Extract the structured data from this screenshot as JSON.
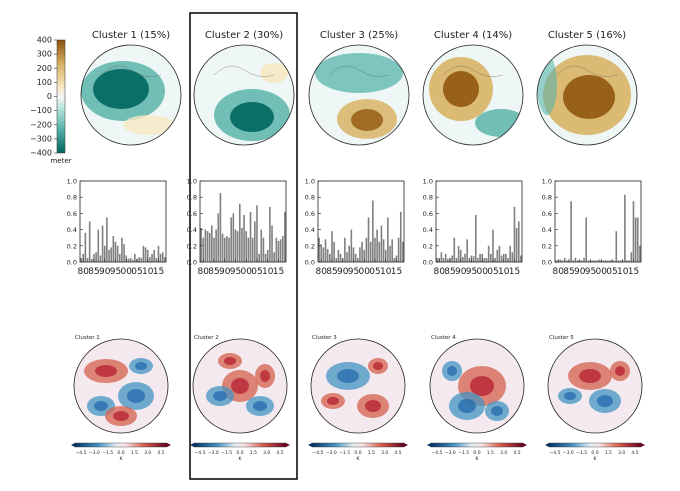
{
  "colors": {
    "teal_dark": "#01665e",
    "teal_mid": "#5ab4ac",
    "teal_light": "#c7eae5",
    "brown_dark": "#8c510a",
    "brown_mid": "#d8b365",
    "brown_light": "#f6e8c3",
    "bar_fill": "#808080",
    "red": "#d6604d",
    "blue": "#4393c3"
  },
  "colorbar": {
    "ticks": [
      "400",
      "300",
      "200",
      "100",
      "0",
      "−100",
      "−200",
      "−300",
      "−400"
    ],
    "unit": "meter"
  },
  "temperature_colorbar": {
    "ticks": [
      "−4.5",
      "−3.0",
      "−1.5",
      "0.0",
      "1.5",
      "3.0",
      "4.5"
    ],
    "unit": "K"
  },
  "chart_data": [
    {
      "type": "heatmap",
      "description_of_panels": "Cluster height-anomaly maps (top row)",
      "clusters": [
        {
          "title": "Cluster 1  (15%)",
          "pattern": "negative-center"
        },
        {
          "title": "Cluster 2  (30%)",
          "pattern": "negative-south"
        },
        {
          "title": "Cluster 3  (25%)",
          "pattern": "positive-south"
        },
        {
          "title": "Cluster 4  (14%)",
          "pattern": "positive-west"
        },
        {
          "title": "Cluster 5  (16%)",
          "pattern": "positive-center"
        }
      ]
    },
    {
      "type": "bar",
      "x_tick_labels": [
        "80",
        "85",
        "90",
        "95",
        "00",
        "05",
        "10",
        "15"
      ],
      "x": [
        1979,
        1980,
        1981,
        1982,
        1983,
        1984,
        1985,
        1986,
        1987,
        1988,
        1989,
        1990,
        1991,
        1992,
        1993,
        1994,
        1995,
        1996,
        1997,
        1998,
        1999,
        2000,
        2001,
        2002,
        2003,
        2004,
        2005,
        2006,
        2007,
        2008,
        2009,
        2010,
        2011,
        2012,
        2013,
        2014,
        2015,
        2016,
        2017,
        2018
      ],
      "ylim": [
        0,
        1.0
      ],
      "y_ticks": [
        "0.0",
        "0.2",
        "0.4",
        "0.6",
        "0.8",
        "1.0"
      ],
      "series": [
        {
          "values": [
            0.05,
            0.1,
            0.36,
            0.05,
            0.5,
            0.04,
            0.1,
            0.12,
            0.4,
            0.08,
            0.45,
            0.2,
            0.55,
            0.15,
            0.18,
            0.32,
            0.25,
            0.2,
            0.1,
            0.3,
            0.22,
            0.08,
            0.04,
            0.05,
            0.03,
            0.1,
            0.04,
            0.06,
            0.05,
            0.2,
            0.18,
            0.15,
            0.06,
            0.1,
            0.15,
            0.05,
            0.2,
            0.1,
            0.12,
            0.06
          ]
        },
        {
          "values": [
            0.42,
            0.3,
            0.4,
            0.38,
            0.36,
            0.45,
            0.3,
            0.4,
            0.6,
            0.85,
            0.35,
            0.3,
            0.32,
            0.3,
            0.55,
            0.6,
            0.4,
            0.38,
            0.72,
            0.42,
            0.58,
            0.38,
            0.3,
            0.62,
            0.3,
            0.5,
            0.7,
            0.1,
            0.4,
            0.3,
            0.1,
            0.15,
            0.68,
            0.45,
            0.12,
            0.3,
            0.26,
            0.28,
            0.32,
            0.62
          ]
        },
        {
          "values": [
            0.3,
            0.22,
            0.18,
            0.28,
            0.16,
            0.1,
            0.38,
            0.25,
            0.05,
            0.15,
            0.1,
            0.05,
            0.3,
            0.12,
            0.2,
            0.4,
            0.18,
            0.1,
            0.05,
            0.18,
            0.25,
            0.15,
            0.3,
            0.55,
            0.25,
            0.76,
            0.3,
            0.4,
            0.25,
            0.45,
            0.28,
            0.15,
            0.55,
            0.2,
            0.28,
            0.05,
            0.08,
            0.3,
            0.62,
            0.25
          ]
        },
        {
          "values": [
            0.05,
            0.05,
            0.12,
            0.05,
            0.1,
            0.04,
            0.05,
            0.08,
            0.3,
            0.05,
            0.2,
            0.15,
            0.06,
            0.1,
            0.28,
            0.05,
            0.08,
            0.07,
            0.58,
            0.05,
            0.1,
            0.1,
            0.05,
            0.05,
            0.2,
            0.1,
            0.4,
            0.05,
            0.15,
            0.2,
            0.08,
            0.1,
            0.1,
            0.05,
            0.2,
            0.12,
            0.68,
            0.42,
            0.5,
            0.08
          ]
        },
        {
          "values": [
            0.02,
            0.02,
            0.03,
            0.02,
            0.05,
            0.02,
            0.02,
            0.75,
            0.02,
            0.05,
            0.02,
            0.02,
            0.02,
            0.05,
            0.55,
            0.02,
            0.02,
            0.02,
            0.02,
            0.02,
            0.03,
            0.02,
            0.02,
            0.02,
            0.02,
            0.02,
            0.02,
            0.02,
            0.38,
            0.02,
            0.02,
            0.02,
            0.83,
            0.02,
            0.02,
            0.12,
            0.75,
            0.55,
            0.55,
            0.2
          ]
        }
      ]
    },
    {
      "type": "heatmap",
      "description_of_panels": "Temperature anomaly maps (bottom row)",
      "clusters": [
        {
          "title": "Cluster 1"
        },
        {
          "title": "Cluster 2"
        },
        {
          "title": "Cluster 3"
        },
        {
          "title": "Cluster 4"
        },
        {
          "title": "Cluster 5"
        }
      ]
    }
  ]
}
